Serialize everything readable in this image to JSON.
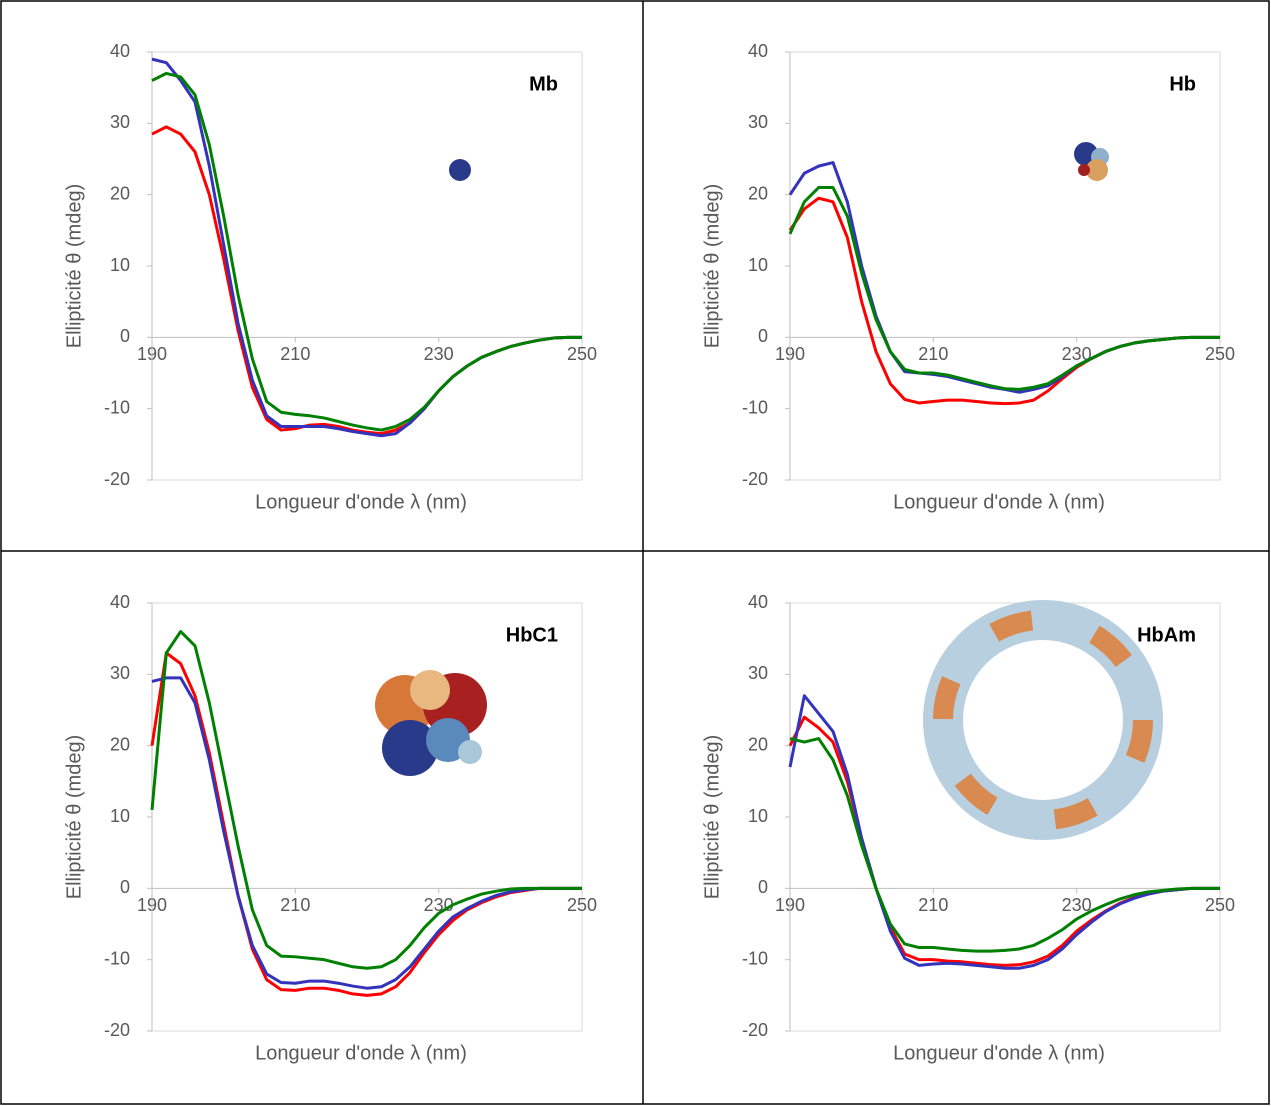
{
  "chart_data": [
    {
      "type": "line",
      "label": "Mb",
      "x_label": "Longueur d'onde λ (nm)",
      "y_label": "Ellipticité θ (mdeg)",
      "x": [
        190,
        192,
        194,
        196,
        198,
        200,
        202,
        204,
        206,
        208,
        210,
        212,
        214,
        216,
        218,
        220,
        222,
        224,
        226,
        228,
        230,
        232,
        234,
        236,
        238,
        240,
        242,
        244,
        246,
        248,
        250
      ],
      "series": [
        {
          "color": "#ff0000",
          "values": [
            28.5,
            29.5,
            28.5,
            26,
            20,
            11,
            1,
            -7,
            -11.5,
            -13,
            -12.8,
            -12.3,
            -12.2,
            -12.5,
            -13,
            -13.3,
            -13.5,
            -13,
            -12,
            -10,
            -7.5,
            -5.5,
            -4,
            -2.8,
            -2,
            -1.3,
            -0.8,
            -0.4,
            -0.1,
            0,
            0
          ]
        },
        {
          "color": "#3333bb",
          "values": [
            39,
            38.5,
            36,
            33,
            24,
            13,
            2,
            -6,
            -11,
            -12.5,
            -12.5,
            -12.5,
            -12.5,
            -12.8,
            -13.2,
            -13.5,
            -13.8,
            -13.5,
            -12,
            -10,
            -7.5,
            -5.5,
            -4,
            -2.8,
            -2,
            -1.3,
            -0.8,
            -0.4,
            -0.1,
            0,
            0
          ]
        },
        {
          "color": "#008000",
          "values": [
            36,
            37,
            36.5,
            34,
            27,
            17,
            6,
            -3,
            -9,
            -10.5,
            -10.8,
            -11,
            -11.3,
            -11.8,
            -12.3,
            -12.7,
            -13,
            -12.5,
            -11.5,
            -9.8,
            -7.5,
            -5.5,
            -4,
            -2.8,
            -2,
            -1.3,
            -0.8,
            -0.4,
            -0.1,
            0,
            0
          ]
        }
      ],
      "xlim": [
        190,
        250
      ],
      "ylim": [
        -20,
        40
      ],
      "xticks": [
        190,
        210,
        230,
        250
      ],
      "yticks": [
        -20,
        -10,
        0,
        10,
        20,
        30,
        40
      ]
    },
    {
      "type": "line",
      "label": "Hb",
      "x_label": "Longueur d'onde λ (nm)",
      "y_label": "Ellipticité θ (mdeg)",
      "x": [
        190,
        192,
        194,
        196,
        198,
        200,
        202,
        204,
        206,
        208,
        210,
        212,
        214,
        216,
        218,
        220,
        222,
        224,
        226,
        228,
        230,
        232,
        234,
        236,
        238,
        240,
        242,
        244,
        246,
        248,
        250
      ],
      "series": [
        {
          "color": "#ff0000",
          "values": [
            15,
            18,
            19.5,
            19,
            14,
            5,
            -2,
            -6.5,
            -8.7,
            -9.2,
            -9,
            -8.8,
            -8.8,
            -9,
            -9.2,
            -9.3,
            -9.2,
            -8.8,
            -7.5,
            -5.8,
            -4.2,
            -3,
            -2,
            -1.3,
            -0.8,
            -0.5,
            -0.3,
            -0.1,
            0,
            0,
            0
          ]
        },
        {
          "color": "#3333bb",
          "values": [
            20,
            23,
            24,
            24.5,
            19,
            10,
            3,
            -2,
            -4.8,
            -5,
            -5.2,
            -5.5,
            -6,
            -6.5,
            -7,
            -7.3,
            -7.7,
            -7.3,
            -6.8,
            -5.5,
            -4,
            -3,
            -2,
            -1.3,
            -0.8,
            -0.5,
            -0.3,
            -0.1,
            0,
            0,
            0
          ]
        },
        {
          "color": "#008000",
          "values": [
            14.5,
            19,
            21,
            21,
            17,
            9,
            2.5,
            -2,
            -4.5,
            -5,
            -5,
            -5.3,
            -5.8,
            -6.3,
            -6.8,
            -7.2,
            -7.3,
            -7,
            -6.5,
            -5.3,
            -4,
            -3,
            -2,
            -1.3,
            -0.8,
            -0.5,
            -0.3,
            -0.1,
            0,
            0,
            0
          ]
        }
      ],
      "xlim": [
        190,
        250
      ],
      "ylim": [
        -20,
        40
      ],
      "xticks": [
        190,
        210,
        230,
        250
      ],
      "yticks": [
        -20,
        -10,
        0,
        10,
        20,
        30,
        40
      ]
    },
    {
      "type": "line",
      "label": "HbC1",
      "x_label": "Longueur d'onde λ (nm)",
      "y_label": "Ellipticité θ (mdeg)",
      "x": [
        190,
        192,
        194,
        196,
        198,
        200,
        202,
        204,
        206,
        208,
        210,
        212,
        214,
        216,
        218,
        220,
        222,
        224,
        226,
        228,
        230,
        232,
        234,
        236,
        238,
        240,
        242,
        244,
        246,
        248,
        250
      ],
      "series": [
        {
          "color": "#ff0000",
          "values": [
            20,
            33,
            31.5,
            27,
            19,
            9,
            -1,
            -8.5,
            -12.8,
            -14.2,
            -14.3,
            -14,
            -14,
            -14.3,
            -14.8,
            -15,
            -14.8,
            -13.8,
            -11.8,
            -9,
            -6.5,
            -4.5,
            -3,
            -2,
            -1.2,
            -0.6,
            -0.3,
            0,
            0,
            0,
            0
          ]
        },
        {
          "color": "#3333bb",
          "values": [
            29,
            29.5,
            29.5,
            26,
            18,
            8,
            -1,
            -8,
            -12,
            -13.2,
            -13.3,
            -13,
            -13,
            -13.3,
            -13.7,
            -14,
            -13.8,
            -12.8,
            -11,
            -8.5,
            -6,
            -4,
            -2.8,
            -1.8,
            -1,
            -0.5,
            -0.2,
            0,
            0,
            0,
            0
          ]
        },
        {
          "color": "#008000",
          "values": [
            11,
            33,
            36,
            34,
            26,
            16,
            6,
            -3,
            -8,
            -9.5,
            -9.6,
            -9.8,
            -10,
            -10.5,
            -11,
            -11.2,
            -11,
            -10,
            -8,
            -5.5,
            -3.5,
            -2.3,
            -1.5,
            -0.8,
            -0.4,
            -0.1,
            0,
            0,
            0,
            0,
            0
          ]
        }
      ],
      "xlim": [
        190,
        250
      ],
      "ylim": [
        -20,
        40
      ],
      "xticks": [
        190,
        210,
        230,
        250
      ],
      "yticks": [
        -20,
        -10,
        0,
        10,
        20,
        30,
        40
      ]
    },
    {
      "type": "line",
      "label": "HbAm",
      "x_label": "Longueur d'onde λ (nm)",
      "y_label": "Ellipticité θ (mdeg)",
      "x": [
        190,
        192,
        194,
        196,
        198,
        200,
        202,
        204,
        206,
        208,
        210,
        212,
        214,
        216,
        218,
        220,
        222,
        224,
        226,
        228,
        230,
        232,
        234,
        236,
        238,
        240,
        242,
        244,
        246,
        248,
        250
      ],
      "series": [
        {
          "color": "#ff0000",
          "values": [
            20,
            24,
            22.5,
            20.5,
            15,
            7,
            0,
            -5.5,
            -9.2,
            -10,
            -10,
            -10.2,
            -10.3,
            -10.5,
            -10.7,
            -10.8,
            -10.7,
            -10.3,
            -9.5,
            -8,
            -6,
            -4.5,
            -3.2,
            -2.1,
            -1.3,
            -0.8,
            -0.4,
            -0.2,
            0,
            0,
            0
          ]
        },
        {
          "color": "#3333bb",
          "values": [
            17,
            27,
            24.5,
            22,
            16,
            7,
            0,
            -6,
            -9.8,
            -10.8,
            -10.6,
            -10.5,
            -10.6,
            -10.8,
            -11,
            -11.2,
            -11.2,
            -10.8,
            -10,
            -8.5,
            -6.5,
            -4.8,
            -3.3,
            -2.2,
            -1.4,
            -0.8,
            -0.4,
            -0.2,
            0,
            0,
            0
          ]
        },
        {
          "color": "#008000",
          "values": [
            21,
            20.5,
            21,
            18,
            13,
            6,
            0,
            -5,
            -7.8,
            -8.3,
            -8.3,
            -8.5,
            -8.7,
            -8.8,
            -8.8,
            -8.7,
            -8.5,
            -8,
            -7,
            -5.8,
            -4.3,
            -3.2,
            -2.3,
            -1.5,
            -0.9,
            -0.5,
            -0.3,
            -0.1,
            0,
            0,
            0
          ]
        }
      ],
      "xlim": [
        190,
        250
      ],
      "ylim": [
        -20,
        40
      ],
      "xticks": [
        190,
        210,
        230,
        250
      ],
      "yticks": [
        -20,
        -10,
        0,
        10,
        20,
        30,
        40
      ]
    }
  ]
}
